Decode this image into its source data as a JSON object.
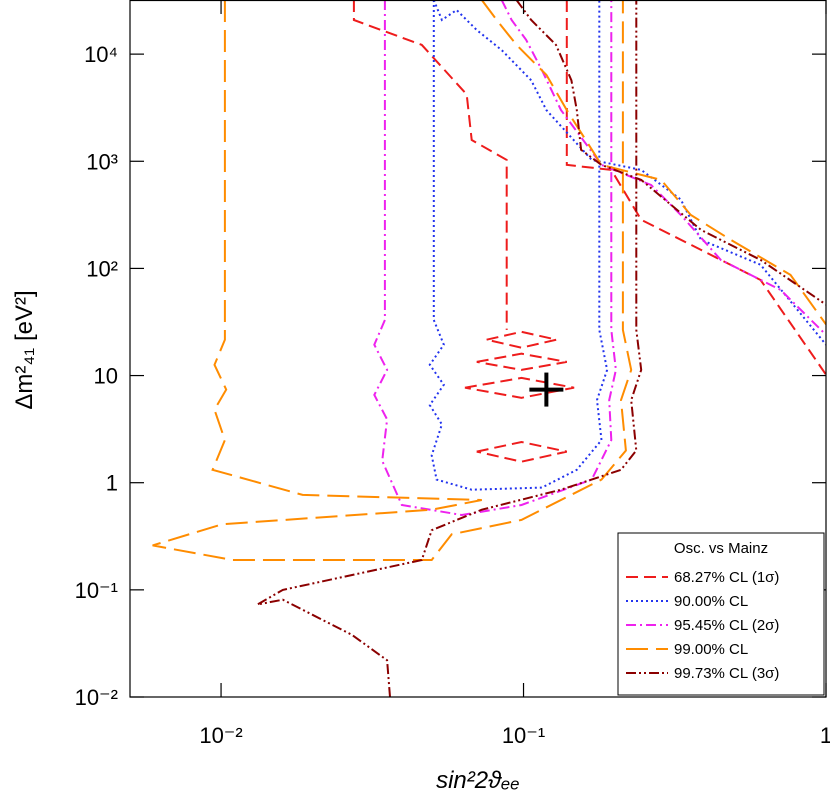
{
  "chart_data": {
    "type": "contour",
    "xlabel": "sin²2ϑₑₑ",
    "ylabel": "Δm²₄₁   [eV²]",
    "xscale": "log",
    "yscale": "log",
    "xlim": [
      0.005,
      1
    ],
    "ylim": [
      0.01,
      32000
    ],
    "xticks": [
      {
        "value": 0.01,
        "label": "10⁻²"
      },
      {
        "value": 0.1,
        "label": "10⁻¹"
      },
      1
    ],
    "yticks": [
      {
        "value": 0.01,
        "label": "10⁻²"
      },
      {
        "value": 0.1,
        "label": "10⁻¹"
      },
      1,
      10,
      {
        "value": 100,
        "label": "10²"
      },
      {
        "value": 1000,
        "label": "10³"
      },
      {
        "value": 10000,
        "label": "10⁴"
      }
    ],
    "legend_title": "Osc. vs Mainz",
    "legend_loc": "lower right",
    "best_fit": {
      "x": 0.119,
      "y": 7.4
    },
    "series": [
      {
        "name": "68.27% CL (1σ)",
        "color": "#ee1c1c",
        "line_style": "dashed",
        "x": [
          0.0275,
          0.0275,
          0.0461,
          0.0649,
          0.0674,
          0.088,
          0.088,
          null,
          0.139,
          0.139,
          0.195,
          0.245,
          0.386,
          0.608,
          1.0,
          null,
          0.0755,
          0.0985,
          0.1285,
          0.0985,
          0.0755,
          null,
          0.07,
          0.0985,
          0.139,
          0.0985,
          0.07,
          null,
          0.064,
          0.0985,
          0.147,
          0.0985,
          0.064,
          null,
          0.07,
          0.0985,
          0.139,
          0.0985,
          0.07
        ],
        "y": [
          32000,
          20800,
          12200,
          4200,
          1580,
          1030,
          26.7,
          null,
          32000,
          925,
          830,
          284,
          149,
          78,
          10.2,
          null,
          21.6,
          25.6,
          21.6,
          18.2,
          21.6,
          null,
          13.4,
          16,
          13.4,
          11.3,
          13.4,
          null,
          7.7,
          9.5,
          7.7,
          6.2,
          7.7,
          null,
          1.95,
          2.4,
          1.95,
          1.57,
          1.95
        ]
      },
      {
        "name": "90.00% CL",
        "color": "#2233ee",
        "line_style": "dotted",
        "x": [
          0.0505,
          0.0537,
          0.0601,
          0.07,
          0.0847,
          0.106,
          0.119,
          0.168,
          0.245,
          0.331,
          0.386,
          0.608,
          1.0,
          null,
          0.0505,
          0.0505,
          0.0545,
          0.049,
          0.0545,
          0.049,
          0.0537,
          0.0497,
          0.0516,
          0.0674,
          0.115,
          0.15,
          0.181,
          0.175,
          0.189,
          0.178,
          0.178
        ],
        "y": [
          32000,
          20800,
          25800,
          16800,
          10900,
          5700,
          3000,
          1030,
          830,
          440,
          185,
          108,
          19.4,
          null,
          32000,
          33,
          19.4,
          12.6,
          8.2,
          5.3,
          3.5,
          1.8,
          1.07,
          0.86,
          0.9,
          1.32,
          2.5,
          5.9,
          11.3,
          26.7,
          32000
        ]
      },
      {
        "name": "95.45% CL (2σ)",
        "color": "#ee22ee",
        "line_style": "dashdot",
        "x": [
          0.0847,
          0.0913,
          0.102,
          0.115,
          0.133,
          0.181,
          0.264,
          0.331,
          0.449,
          0.708,
          1.0,
          null,
          0.0348,
          0.0348,
          0.0321,
          0.0354,
          0.0321,
          0.0354,
          0.0341,
          0.0396,
          0.0625,
          0.0985,
          0.168,
          0.195,
          0.192,
          0.202,
          0.195,
          0.195
        ],
        "y": [
          32000,
          20800,
          13600,
          7100,
          3000,
          925,
          600,
          316,
          120,
          63,
          24,
          null,
          32000,
          33,
          19.4,
          11.3,
          6.6,
          3.9,
          1.6,
          0.62,
          0.5,
          0.62,
          1.07,
          2.5,
          5.9,
          11.3,
          26.7,
          32000
        ]
      },
      {
        "name": "99.00% CL",
        "color": "#ff8c00",
        "line_style": "longdash",
        "x": [
          0.0728,
          0.0815,
          0.0948,
          0.119,
          0.139,
          0.181,
          0.285,
          0.357,
          0.484,
          0.763,
          1.0,
          null,
          0.0103,
          0.0103,
          0.00951,
          0.0104,
          0.00951,
          0.0103,
          0.00938,
          0.0186,
          0.0728,
          0.0497,
          0.0101,
          0.00594,
          0.0109,
          0.0497,
          0.0579,
          0.0985,
          0.181,
          0.218,
          0.21,
          0.227,
          0.213,
          0.213
        ],
        "y": [
          32000,
          20800,
          12200,
          6400,
          3000,
          925,
          670,
          316,
          185,
          87,
          30,
          null,
          32000,
          21.6,
          12.6,
          7.4,
          4.8,
          2.5,
          1.32,
          0.77,
          0.69,
          0.56,
          0.41,
          0.26,
          0.19,
          0.19,
          0.33,
          0.45,
          1.07,
          2.0,
          5.9,
          11.3,
          26.7,
          32000
        ]
      },
      {
        "name": "99.73% CL (3σ)",
        "color": "#8b0000",
        "line_style": "dashdotdot",
        "x": [
          0.0948,
          0.106,
          0.128,
          0.144,
          0.15,
          0.155,
          0.181,
          0.245,
          0.386,
          0.608,
          1.0,
          null,
          0.0362,
          0.0354,
          0.0271,
          0.016,
          0.0132,
          0.016,
          0.0461,
          0.0497,
          0.0728,
          0.133,
          0.21,
          0.236,
          0.227,
          0.245,
          0.236,
          0.236
        ],
        "y": [
          32000,
          20800,
          12200,
          5700,
          3000,
          1280,
          925,
          670,
          229,
          120,
          46,
          null,
          0.01,
          0.022,
          0.038,
          0.081,
          0.073,
          0.1,
          0.19,
          0.36,
          0.56,
          0.86,
          1.32,
          2.0,
          5.9,
          11.3,
          26.7,
          32000
        ]
      }
    ]
  }
}
